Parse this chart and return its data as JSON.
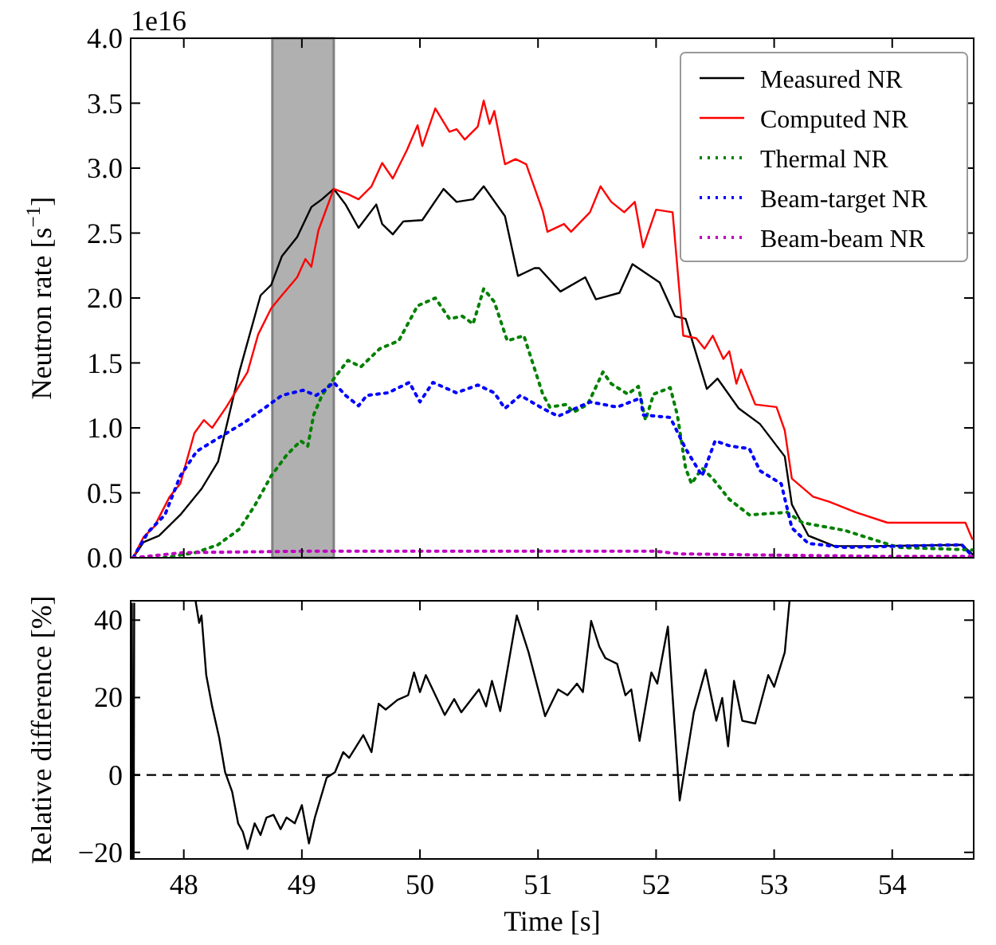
{
  "chart_data": [
    {
      "type": "line",
      "ylabel": "Neutron rate [s$^{−1}$]",
      "annotations": [
        "1e16"
      ],
      "xlim": [
        47.55,
        54.69
      ],
      "xticks": [
        48,
        49,
        50,
        51,
        52,
        53,
        54
      ],
      "ylim": [
        0,
        4
      ],
      "yticks": [
        {
          "value": 0,
          "label": "0.0"
        },
        {
          "value": 0.5,
          "label": "0.5"
        },
        {
          "value": 1,
          "label": "1.0"
        },
        {
          "value": 1.5,
          "label": "1.5"
        },
        {
          "value": 2,
          "label": "2.0"
        },
        {
          "value": 2.5,
          "label": "2.5"
        },
        {
          "value": 3,
          "label": "3.0"
        },
        {
          "value": 3.5,
          "label": "3.5"
        },
        {
          "value": 4,
          "label": "4.0"
        }
      ],
      "tick_labels": "y",
      "grid": false,
      "legend": "top right",
      "bands": [
        {
          "axis": "x",
          "from": 48.75,
          "to": 49.27,
          "color": "#b0b0b0"
        }
      ],
      "series": [
        {
          "name": "Measured NR",
          "color": "#000000",
          "line_style": "solid",
          "x": [
            47.57,
            47.66,
            47.79,
            47.97,
            48.15,
            48.29,
            48.47,
            48.65,
            48.74,
            48.83,
            48.96,
            49.08,
            49.17,
            49.27,
            49.37,
            49.48,
            49.63,
            49.68,
            49.77,
            49.86,
            50.02,
            50.2,
            50.31,
            50.45,
            50.54,
            50.72,
            50.83,
            50.97,
            51.01,
            51.19,
            51.4,
            51.49,
            51.69,
            51.8,
            52.03,
            52.16,
            52.25,
            52.43,
            52.52,
            52.7,
            52.88,
            53.09,
            53.15,
            53.29,
            53.51,
            53.83,
            54.59,
            54.69
          ],
          "values": [
            0,
            0.12,
            0.17,
            0.33,
            0.53,
            0.74,
            1.43,
            2.02,
            2.1,
            2.32,
            2.47,
            2.7,
            2.76,
            2.84,
            2.72,
            2.54,
            2.72,
            2.57,
            2.49,
            2.59,
            2.6,
            2.84,
            2.74,
            2.76,
            2.86,
            2.63,
            2.17,
            2.23,
            2.23,
            2.05,
            2.16,
            1.99,
            2.04,
            2.26,
            2.12,
            1.86,
            1.84,
            1.3,
            1.38,
            1.15,
            1.03,
            0.78,
            0.41,
            0.17,
            0.09,
            0.09,
            0.1,
            0.02
          ]
        },
        {
          "name": "Computed NR",
          "color": "#ff0000",
          "line_style": "solid",
          "x": [
            47.57,
            47.66,
            47.75,
            47.88,
            47.97,
            48.09,
            48.17,
            48.24,
            48.36,
            48.54,
            48.63,
            48.74,
            48.83,
            48.96,
            49.03,
            49.08,
            49.14,
            49.27,
            49.39,
            49.48,
            49.59,
            49.68,
            49.77,
            49.89,
            49.98,
            50.02,
            50.13,
            50.25,
            50.31,
            50.38,
            50.49,
            50.54,
            50.59,
            50.63,
            50.72,
            50.81,
            50.9,
            51.04,
            51.08,
            51.22,
            51.28,
            51.44,
            51.53,
            51.62,
            51.73,
            51.82,
            51.89,
            52.0,
            52.14,
            52.23,
            52.34,
            52.41,
            52.48,
            52.57,
            52.62,
            52.68,
            52.72,
            52.84,
            53.02,
            53.09,
            53.15,
            53.33,
            53.47,
            53.69,
            53.96,
            54.62,
            54.68
          ],
          "values": [
            0,
            0.16,
            0.24,
            0.47,
            0.57,
            0.96,
            1.06,
            1.0,
            1.16,
            1.43,
            1.72,
            1.92,
            2.02,
            2.16,
            2.3,
            2.24,
            2.52,
            2.84,
            2.8,
            2.76,
            2.86,
            3.04,
            2.92,
            3.14,
            3.33,
            3.17,
            3.46,
            3.28,
            3.3,
            3.22,
            3.32,
            3.52,
            3.34,
            3.44,
            3.03,
            3.07,
            3.03,
            2.67,
            2.51,
            2.57,
            2.51,
            2.66,
            2.86,
            2.74,
            2.66,
            2.74,
            2.39,
            2.68,
            2.66,
            1.71,
            1.69,
            1.61,
            1.71,
            1.53,
            1.59,
            1.34,
            1.45,
            1.18,
            1.16,
            0.98,
            0.61,
            0.47,
            0.43,
            0.35,
            0.27,
            0.27,
            0.14
          ]
        },
        {
          "name": "Thermal NR",
          "color": "#008000",
          "line_style": "dotted",
          "x": [
            47.83,
            48.1,
            48.29,
            48.47,
            48.6,
            48.74,
            48.87,
            48.99,
            49.05,
            49.1,
            49.17,
            49.28,
            49.39,
            49.5,
            49.66,
            49.82,
            49.98,
            50.13,
            50.25,
            50.36,
            50.45,
            50.54,
            50.63,
            50.74,
            50.88,
            51.04,
            51.1,
            51.24,
            51.3,
            51.42,
            51.55,
            51.62,
            51.76,
            51.85,
            51.91,
            51.98,
            52.12,
            52.18,
            52.25,
            52.3,
            52.39,
            52.48,
            52.62,
            52.79,
            53.11,
            53.24,
            53.6,
            54.05,
            54.69
          ],
          "values": [
            0,
            0.04,
            0.1,
            0.22,
            0.4,
            0.63,
            0.79,
            0.9,
            0.86,
            1.1,
            1.25,
            1.39,
            1.52,
            1.47,
            1.61,
            1.67,
            1.94,
            2.0,
            1.84,
            1.86,
            1.8,
            2.07,
            1.97,
            1.67,
            1.71,
            1.26,
            1.16,
            1.18,
            1.12,
            1.18,
            1.43,
            1.34,
            1.26,
            1.32,
            1.06,
            1.26,
            1.31,
            1.1,
            0.69,
            0.57,
            0.69,
            0.61,
            0.45,
            0.33,
            0.35,
            0.27,
            0.21,
            0.08,
            0.06
          ]
        },
        {
          "name": "Beam-target NR",
          "color": "#0000ff",
          "line_style": "dotted",
          "x": [
            47.57,
            47.7,
            47.84,
            47.97,
            48.11,
            48.29,
            48.51,
            48.74,
            48.83,
            49.01,
            49.12,
            49.19,
            49.27,
            49.37,
            49.48,
            49.55,
            49.73,
            49.91,
            50.0,
            50.11,
            50.31,
            50.49,
            50.63,
            50.72,
            50.85,
            51.04,
            51.17,
            51.44,
            51.67,
            51.87,
            51.89,
            52.12,
            52.25,
            52.39,
            52.5,
            52.63,
            52.79,
            52.88,
            53.06,
            53.15,
            53.29,
            53.6,
            54.59,
            54.69
          ],
          "values": [
            0,
            0.2,
            0.33,
            0.63,
            0.82,
            0.92,
            1.04,
            1.19,
            1.25,
            1.29,
            1.25,
            1.29,
            1.35,
            1.25,
            1.17,
            1.25,
            1.27,
            1.35,
            1.2,
            1.35,
            1.27,
            1.33,
            1.27,
            1.15,
            1.25,
            1.15,
            1.09,
            1.2,
            1.16,
            1.23,
            1.1,
            1.08,
            0.84,
            0.63,
            0.9,
            0.86,
            0.84,
            0.67,
            0.57,
            0.23,
            0.11,
            0.08,
            0.1,
            0
          ]
        },
        {
          "name": "Beam-beam NR",
          "color": "#bf00bf",
          "line_style": "dotted",
          "x": [
            47.57,
            48.0,
            49.0,
            50.0,
            51.0,
            52.0,
            52.2,
            53.0,
            54.0,
            54.69
          ],
          "values": [
            0,
            0.04,
            0.05,
            0.05,
            0.05,
            0.05,
            0.03,
            0.02,
            0.01,
            0.01
          ]
        }
      ]
    },
    {
      "type": "line",
      "xlabel": "Time [s]",
      "ylabel": "Relative difference [%]",
      "xlim": [
        47.55,
        54.69
      ],
      "xticks": [
        48,
        49,
        50,
        51,
        52,
        53,
        54
      ],
      "ylim": [
        -21.7,
        45
      ],
      "yticks": [
        {
          "value": -20,
          "label": "−20"
        },
        0,
        20,
        40
      ],
      "grid": false,
      "legend": false,
      "ref_lines": [
        {
          "axis": "y",
          "value": 0,
          "color": "#000000",
          "line_style": "dashed"
        }
      ],
      "series": [
        {
          "color": "#000000",
          "line_style": "solid",
          "x": [
            47.56,
            47.565,
            47.575,
            47.58,
            null,
            48.1,
            48.13,
            48.15,
            48.19,
            48.24,
            48.3,
            48.35,
            48.41,
            48.46,
            48.5,
            48.54,
            48.6,
            48.65,
            48.7,
            48.76,
            48.82,
            48.87,
            48.94,
            49.0,
            49.06,
            49.11,
            49.21,
            49.28,
            49.35,
            49.4,
            49.52,
            49.59,
            49.65,
            49.71,
            49.81,
            49.9,
            49.95,
            50.0,
            50.05,
            50.21,
            50.29,
            50.35,
            50.5,
            50.56,
            50.61,
            50.68,
            50.82,
            50.92,
            51.06,
            51.17,
            51.25,
            51.33,
            51.38,
            51.45,
            51.52,
            51.57,
            51.67,
            51.74,
            51.79,
            51.86,
            51.96,
            52.01,
            52.1,
            52.2,
            52.32,
            52.42,
            52.51,
            52.56,
            52.61,
            52.66,
            52.73,
            52.84,
            52.95,
            53.0,
            53.09,
            53.13
          ],
          "values": [
            44.5,
            -21.5,
            -21.5,
            44.5,
            null,
            44.9,
            39.3,
            41.2,
            25.8,
            17.7,
            9.6,
            0.7,
            -4.4,
            -12.5,
            -14.7,
            -19.1,
            -12.5,
            -15.5,
            -11,
            -10.3,
            -14,
            -11,
            -12.5,
            -7.8,
            -17.7,
            -11,
            -0.7,
            0.7,
            5.9,
            4.4,
            10.3,
            5.9,
            18.4,
            16.9,
            19.4,
            20.6,
            26.5,
            21.4,
            25.8,
            15.5,
            19.6,
            16.2,
            22.1,
            17.7,
            24.3,
            16.5,
            41.2,
            31.7,
            15.2,
            22.1,
            20.6,
            23.6,
            21.4,
            39.8,
            33.1,
            30.2,
            28.7,
            20.6,
            22.1,
            8.8,
            26.5,
            23.6,
            38.3,
            -6.6,
            16.2,
            27.2,
            14,
            19.9,
            7.4,
            24.3,
            14,
            13.3,
            25.8,
            22.8,
            31.7,
            44.9
          ]
        }
      ]
    }
  ]
}
